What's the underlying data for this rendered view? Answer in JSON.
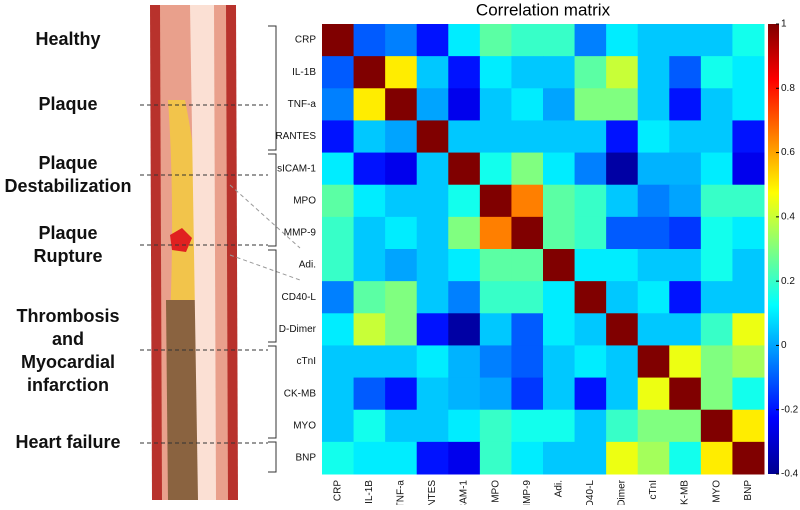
{
  "chart_data": {
    "type": "heatmap",
    "title": "Correlation matrix",
    "colormap": "jet",
    "categories": [
      "CRP",
      "IL-1B",
      "TNF-a",
      "RANTES",
      "sICAM-1",
      "MPO",
      "MMP-9",
      "Adi.",
      "CD40-L",
      "D-Dimer",
      "cTnI",
      "CK-MB",
      "MYO",
      "BNP"
    ],
    "values": [
      [
        1,
        -0.1,
        -0.05,
        -0.2,
        0.1,
        0.25,
        0.2,
        0.2,
        -0.05,
        0.1,
        0.05,
        0.05,
        0.05,
        0.15
      ],
      [
        -0.1,
        1,
        0.5,
        0.05,
        -0.2,
        0.1,
        0.05,
        0.05,
        0.25,
        0.4,
        0.05,
        -0.1,
        0.15,
        0.1
      ],
      [
        -0.05,
        0.5,
        1,
        0,
        -0.25,
        0.05,
        0.1,
        0,
        0.3,
        0.3,
        0.05,
        -0.2,
        0.05,
        0.1
      ],
      [
        -0.2,
        0.05,
        0,
        1,
        0.05,
        0.05,
        0.05,
        0.05,
        0.05,
        -0.2,
        0.1,
        0.05,
        0.05,
        -0.2
      ],
      [
        0.1,
        -0.2,
        -0.25,
        0.05,
        1,
        0.15,
        0.3,
        0.1,
        -0.05,
        -0.35,
        0.02,
        0.02,
        0.1,
        -0.25
      ],
      [
        0.25,
        0.1,
        0.05,
        0.05,
        0.15,
        1,
        0.65,
        0.25,
        0.2,
        0.05,
        -0.05,
        0,
        0.2,
        0.2
      ],
      [
        0.2,
        0.05,
        0.1,
        0.05,
        0.3,
        0.65,
        1,
        0.25,
        0.2,
        -0.1,
        -0.1,
        -0.15,
        0.15,
        0.1
      ],
      [
        0.2,
        0.05,
        0,
        0.05,
        0.1,
        0.25,
        0.25,
        1,
        0.1,
        0.1,
        0.05,
        0.05,
        0.15,
        0.05
      ],
      [
        -0.05,
        0.25,
        0.3,
        0.05,
        -0.05,
        0.2,
        0.2,
        0.1,
        1,
        0.05,
        0.1,
        -0.2,
        0.05,
        0.05
      ],
      [
        0.1,
        0.4,
        0.3,
        -0.2,
        -0.35,
        0.05,
        -0.1,
        0.1,
        0.05,
        1,
        0.05,
        0.05,
        0.2,
        0.45
      ],
      [
        0.05,
        0.05,
        0.05,
        0.1,
        0.02,
        -0.05,
        -0.1,
        0.05,
        0.1,
        0.05,
        1,
        0.45,
        0.3,
        0.35
      ],
      [
        0.05,
        -0.1,
        -0.2,
        0.05,
        0.02,
        0,
        -0.15,
        0.05,
        -0.2,
        0.05,
        0.45,
        1,
        0.3,
        0.15
      ],
      [
        0.05,
        0.15,
        0.05,
        0.05,
        0.1,
        0.2,
        0.15,
        0.15,
        0.05,
        0.2,
        0.3,
        0.3,
        1,
        0.5
      ],
      [
        0.15,
        0.1,
        0.1,
        -0.2,
        -0.25,
        0.2,
        0.1,
        0.05,
        0.05,
        0.45,
        0.35,
        0.15,
        0.5,
        1
      ]
    ],
    "zlim": [
      -0.4,
      1
    ],
    "zticks": [
      -0.4,
      -0.2,
      0,
      0.2,
      0.4,
      0.6,
      0.8,
      1
    ]
  },
  "diagram": {
    "stages": [
      {
        "lines": [
          "Healthy"
        ]
      },
      {
        "lines": [
          "Plaque"
        ]
      },
      {
        "lines": [
          "Plaque",
          "Destabilization"
        ]
      },
      {
        "lines": [
          "Plaque",
          "Rupture"
        ]
      },
      {
        "lines": [
          "Thrombosis",
          "and",
          "Myocardial",
          "infarction"
        ]
      },
      {
        "lines": [
          "Heart failure"
        ]
      }
    ]
  }
}
